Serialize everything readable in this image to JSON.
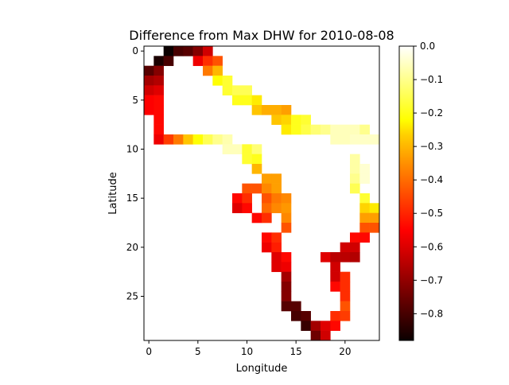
{
  "chart_data": {
    "type": "heatmap",
    "title": "Difference from Max DHW for 2010-08-08",
    "xlabel": "Longitude",
    "ylabel": "Latitude",
    "xlim": [
      -0.5,
      23.5
    ],
    "ylim": [
      29.5,
      -0.5
    ],
    "x_ticks": [
      0,
      5,
      10,
      15,
      20
    ],
    "y_ticks": [
      0,
      5,
      10,
      15,
      20,
      25
    ],
    "colorbar": {
      "colormap": "hot",
      "vmin": -0.88,
      "vmax": 0.0,
      "ticks": [
        0.0,
        -0.1,
        -0.2,
        -0.3,
        -0.4,
        -0.5,
        -0.6,
        -0.7,
        -0.8
      ],
      "tick_labels": [
        "0.0",
        "−0.1",
        "−0.2",
        "−0.3",
        "−0.4",
        "−0.5",
        "−0.6",
        "−0.7",
        "−0.8"
      ]
    },
    "cells": [
      [
        2,
        0,
        -0.88
      ],
      [
        3,
        0,
        -0.8
      ],
      [
        4,
        0,
        -0.78
      ],
      [
        5,
        0,
        -0.72
      ],
      [
        6,
        0,
        -0.62
      ],
      [
        1,
        1,
        -0.86
      ],
      [
        2,
        1,
        -0.8
      ],
      [
        5,
        1,
        -0.58
      ],
      [
        6,
        1,
        -0.5
      ],
      [
        7,
        1,
        -0.45
      ],
      [
        0,
        2,
        -0.78
      ],
      [
        1,
        2,
        -0.72
      ],
      [
        6,
        2,
        -0.4
      ],
      [
        7,
        2,
        -0.32
      ],
      [
        0,
        3,
        -0.68
      ],
      [
        1,
        3,
        -0.66
      ],
      [
        7,
        3,
        -0.22
      ],
      [
        8,
        3,
        -0.18
      ],
      [
        0,
        4,
        -0.62
      ],
      [
        1,
        4,
        -0.6
      ],
      [
        8,
        4,
        -0.18
      ],
      [
        9,
        4,
        -0.15
      ],
      [
        10,
        4,
        -0.15
      ],
      [
        0,
        5,
        -0.56
      ],
      [
        1,
        5,
        -0.55
      ],
      [
        9,
        5,
        -0.2
      ],
      [
        10,
        5,
        -0.2
      ],
      [
        11,
        5,
        -0.25
      ],
      [
        0,
        6,
        -0.56
      ],
      [
        1,
        6,
        -0.55
      ],
      [
        11,
        6,
        -0.3
      ],
      [
        12,
        6,
        -0.33
      ],
      [
        13,
        6,
        -0.33
      ],
      [
        14,
        6,
        -0.35
      ],
      [
        1,
        7,
        -0.55
      ],
      [
        13,
        7,
        -0.3
      ],
      [
        14,
        7,
        -0.28
      ],
      [
        15,
        7,
        -0.2
      ],
      [
        16,
        7,
        -0.18
      ],
      [
        1,
        8,
        -0.55
      ],
      [
        14,
        8,
        -0.25
      ],
      [
        15,
        8,
        -0.2
      ],
      [
        16,
        8,
        -0.16
      ],
      [
        17,
        8,
        -0.12
      ],
      [
        18,
        8,
        -0.1
      ],
      [
        19,
        8,
        -0.06
      ],
      [
        20,
        8,
        -0.06
      ],
      [
        21,
        8,
        -0.06
      ],
      [
        22,
        8,
        -0.1
      ],
      [
        1,
        9,
        -0.58
      ],
      [
        2,
        9,
        -0.48
      ],
      [
        3,
        9,
        -0.4
      ],
      [
        4,
        9,
        -0.3
      ],
      [
        5,
        9,
        -0.22
      ],
      [
        6,
        9,
        -0.15
      ],
      [
        7,
        9,
        -0.1
      ],
      [
        8,
        9,
        -0.07
      ],
      [
        19,
        9,
        -0.06
      ],
      [
        20,
        9,
        -0.06
      ],
      [
        21,
        9,
        -0.05
      ],
      [
        22,
        9,
        -0.05
      ],
      [
        23,
        9,
        -0.05
      ],
      [
        8,
        10,
        -0.06
      ],
      [
        9,
        10,
        -0.06
      ],
      [
        10,
        10,
        -0.18
      ],
      [
        11,
        10,
        -0.12
      ],
      [
        10,
        11,
        -0.18
      ],
      [
        11,
        11,
        -0.2
      ],
      [
        21,
        11,
        -0.08
      ],
      [
        11,
        12,
        -0.32
      ],
      [
        21,
        12,
        -0.08
      ],
      [
        22,
        12,
        -0.04
      ],
      [
        12,
        13,
        -0.35
      ],
      [
        13,
        13,
        -0.35
      ],
      [
        21,
        13,
        -0.1
      ],
      [
        22,
        13,
        -0.04
      ],
      [
        10,
        14,
        -0.45
      ],
      [
        11,
        14,
        -0.45
      ],
      [
        12,
        14,
        -0.38
      ],
      [
        13,
        14,
        -0.35
      ],
      [
        21,
        14,
        -0.15
      ],
      [
        9,
        15,
        -0.55
      ],
      [
        10,
        15,
        -0.5
      ],
      [
        12,
        15,
        -0.45
      ],
      [
        13,
        15,
        -0.4
      ],
      [
        14,
        15,
        -0.38
      ],
      [
        22,
        15,
        -0.18
      ],
      [
        9,
        16,
        -0.6
      ],
      [
        10,
        16,
        -0.55
      ],
      [
        12,
        16,
        -0.42
      ],
      [
        13,
        16,
        -0.38
      ],
      [
        14,
        16,
        -0.36
      ],
      [
        22,
        16,
        -0.28
      ],
      [
        23,
        16,
        -0.25
      ],
      [
        11,
        17,
        -0.55
      ],
      [
        12,
        17,
        -0.5
      ],
      [
        14,
        17,
        -0.38
      ],
      [
        22,
        17,
        -0.35
      ],
      [
        23,
        17,
        -0.35
      ],
      [
        14,
        18,
        -0.45
      ],
      [
        22,
        18,
        -0.45
      ],
      [
        23,
        18,
        -0.45
      ],
      [
        12,
        19,
        -0.55
      ],
      [
        13,
        19,
        -0.5
      ],
      [
        21,
        19,
        -0.55
      ],
      [
        22,
        19,
        -0.55
      ],
      [
        12,
        20,
        -0.58
      ],
      [
        13,
        20,
        -0.52
      ],
      [
        20,
        20,
        -0.62
      ],
      [
        21,
        20,
        -0.62
      ],
      [
        13,
        21,
        -0.6
      ],
      [
        14,
        21,
        -0.55
      ],
      [
        18,
        21,
        -0.6
      ],
      [
        19,
        21,
        -0.65
      ],
      [
        20,
        21,
        -0.65
      ],
      [
        21,
        21,
        -0.66
      ],
      [
        13,
        22,
        -0.6
      ],
      [
        14,
        22,
        -0.58
      ],
      [
        19,
        22,
        -0.62
      ],
      [
        14,
        23,
        -0.68
      ],
      [
        19,
        23,
        -0.62
      ],
      [
        20,
        23,
        -0.5
      ],
      [
        14,
        24,
        -0.72
      ],
      [
        19,
        24,
        -0.55
      ],
      [
        20,
        24,
        -0.5
      ],
      [
        14,
        25,
        -0.72
      ],
      [
        20,
        25,
        -0.5
      ],
      [
        14,
        26,
        -0.78
      ],
      [
        15,
        26,
        -0.78
      ],
      [
        20,
        26,
        -0.45
      ],
      [
        15,
        27,
        -0.8
      ],
      [
        16,
        27,
        -0.78
      ],
      [
        19,
        27,
        -0.5
      ],
      [
        20,
        27,
        -0.48
      ],
      [
        16,
        28,
        -0.82
      ],
      [
        17,
        28,
        -0.68
      ],
      [
        18,
        28,
        -0.6
      ],
      [
        19,
        28,
        -0.55
      ],
      [
        17,
        29,
        -0.75
      ],
      [
        18,
        29,
        -0.62
      ]
    ]
  }
}
